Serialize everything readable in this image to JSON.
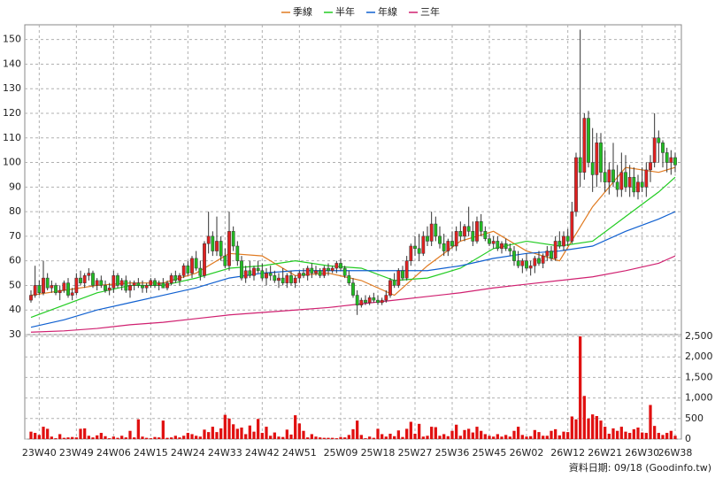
{
  "chart_data": {
    "type": "candlestick",
    "xlim": [
      -1.5,
      157.5
    ],
    "ylim": [
      30,
      156
    ],
    "y2lim": [
      0,
      2500
    ],
    "xticks": [
      {
        "value": 2,
        "label": "23W40"
      },
      {
        "value": 11,
        "label": "23W49"
      },
      {
        "value": 20,
        "label": "24W06"
      },
      {
        "value": 29,
        "label": "24W15"
      },
      {
        "value": 38,
        "label": "24W24"
      },
      {
        "value": 47,
        "label": "24W33"
      },
      {
        "value": 56,
        "label": "24W42"
      },
      {
        "value": 65,
        "label": "24W51"
      },
      {
        "value": 75,
        "label": "25W09"
      },
      {
        "value": 84,
        "label": "25W18"
      },
      {
        "value": 93,
        "label": "25W27"
      },
      {
        "value": 102,
        "label": "25W36"
      },
      {
        "value": 111,
        "label": "25W45"
      },
      {
        "value": 120,
        "label": "26W02"
      },
      {
        "value": 130,
        "label": "26W12"
      },
      {
        "value": 139,
        "label": "26W21"
      },
      {
        "value": 148,
        "label": "26W30"
      },
      {
        "value": 156,
        "label": "26W38"
      }
    ],
    "yticks": [
      30,
      40,
      50,
      60,
      70,
      80,
      90,
      100,
      110,
      120,
      130,
      140,
      150
    ],
    "y2ticks": [
      0,
      500,
      {
        "value": 1000,
        "label": "1,000"
      },
      {
        "value": 1500,
        "label": "1,500"
      },
      {
        "value": 2000,
        "label": "2,000"
      },
      {
        "value": 2500,
        "label": "2,500"
      }
    ],
    "grid": true,
    "up_color": "#e02020",
    "down_color": "#22bb22",
    "volume_color": "#e01010",
    "open": [
      44,
      46,
      50,
      47,
      53,
      49,
      50,
      47,
      48,
      51,
      46,
      47,
      53,
      51,
      54,
      55,
      50,
      52,
      50,
      48,
      49,
      54,
      50,
      52,
      48,
      50,
      51,
      50,
      49,
      50,
      52,
      50,
      51,
      49,
      51,
      54,
      52,
      54,
      58,
      55,
      61,
      57,
      54,
      67,
      70,
      64,
      68,
      62,
      58,
      72,
      66,
      60,
      53,
      56,
      54,
      57,
      56,
      53,
      55,
      54,
      52,
      53,
      51,
      54,
      51,
      53,
      55,
      54,
      57,
      55,
      56,
      54,
      57,
      56,
      57,
      59,
      57,
      54,
      51,
      46,
      42,
      44,
      43,
      45,
      44,
      43,
      44,
      46,
      52,
      50,
      56,
      53,
      60,
      66,
      65,
      63,
      70,
      68,
      75,
      70,
      67,
      64,
      68,
      66,
      72,
      70,
      74,
      72,
      68,
      76,
      72,
      69,
      67,
      68,
      65,
      67,
      65,
      64,
      60,
      58,
      60,
      57,
      58,
      61,
      59,
      62,
      64,
      61,
      68,
      66,
      70,
      68,
      80,
      102,
      96,
      118,
      100,
      95,
      108,
      96,
      92,
      97,
      92,
      89,
      96,
      90,
      94,
      88,
      92,
      90,
      97,
      100,
      110,
      108,
      104,
      100,
      102
    ],
    "high": [
      48,
      58,
      52,
      60,
      55,
      52,
      51,
      50,
      52,
      53,
      49,
      55,
      56,
      55,
      57,
      56,
      53,
      54,
      52,
      51,
      56,
      55,
      53,
      54,
      52,
      52,
      53,
      52,
      51,
      53,
      53,
      52,
      53,
      52,
      55,
      56,
      55,
      59,
      60,
      62,
      64,
      60,
      68,
      80,
      72,
      78,
      70,
      65,
      80,
      74,
      68,
      62,
      58,
      60,
      58,
      60,
      59,
      57,
      58,
      56,
      55,
      57,
      55,
      56,
      54,
      56,
      57,
      58,
      59,
      58,
      57,
      58,
      59,
      58,
      60,
      61,
      58,
      56,
      53,
      48,
      45,
      46,
      46,
      47,
      46,
      45,
      48,
      53,
      55,
      57,
      58,
      62,
      67,
      70,
      71,
      72,
      74,
      80,
      78,
      74,
      71,
      69,
      72,
      74,
      76,
      75,
      82,
      76,
      78,
      79,
      74,
      71,
      70,
      70,
      68,
      69,
      67,
      66,
      64,
      61,
      63,
      60,
      62,
      64,
      63,
      66,
      66,
      70,
      72,
      72,
      73,
      84,
      104,
      154,
      120,
      121,
      114,
      112,
      112,
      105,
      100,
      108,
      99,
      104,
      103,
      99,
      98,
      95,
      98,
      100,
      103,
      120,
      113,
      109,
      106,
      105,
      104
    ],
    "low": [
      43,
      45,
      46,
      46,
      48,
      47,
      46,
      44,
      47,
      45,
      44,
      46,
      50,
      49,
      52,
      49,
      48,
      49,
      47,
      46,
      47,
      49,
      48,
      47,
      45,
      48,
      49,
      47,
      47,
      49,
      49,
      48,
      49,
      48,
      50,
      51,
      50,
      53,
      54,
      53,
      56,
      52,
      53,
      63,
      62,
      62,
      60,
      57,
      56,
      64,
      58,
      52,
      51,
      53,
      52,
      55,
      52,
      50,
      52,
      51,
      49,
      50,
      49,
      50,
      49,
      51,
      53,
      52,
      53,
      54,
      53,
      53,
      54,
      55,
      55,
      56,
      53,
      50,
      45,
      38,
      41,
      42,
      42,
      43,
      42,
      42,
      43,
      45,
      49,
      49,
      52,
      52,
      58,
      62,
      60,
      62,
      66,
      66,
      68,
      65,
      62,
      62,
      65,
      64,
      68,
      68,
      70,
      66,
      67,
      70,
      68,
      66,
      65,
      64,
      63,
      64,
      62,
      58,
      57,
      55,
      56,
      54,
      55,
      58,
      57,
      60,
      60,
      60,
      65,
      64,
      66,
      67,
      78,
      90,
      93,
      98,
      88,
      90,
      92,
      88,
      87,
      90,
      86,
      86,
      88,
      86,
      86,
      85,
      88,
      86,
      92,
      98,
      100,
      98,
      96,
      95,
      96
    ],
    "close": [
      46,
      50,
      47,
      53,
      49,
      50,
      47,
      48,
      51,
      46,
      47,
      53,
      51,
      54,
      55,
      50,
      52,
      50,
      48,
      49,
      54,
      50,
      52,
      48,
      50,
      51,
      50,
      49,
      50,
      52,
      50,
      51,
      49,
      51,
      54,
      52,
      54,
      58,
      55,
      61,
      57,
      54,
      67,
      70,
      64,
      68,
      62,
      58,
      72,
      66,
      60,
      53,
      56,
      54,
      57,
      56,
      53,
      55,
      54,
      52,
      53,
      51,
      54,
      51,
      53,
      55,
      54,
      57,
      55,
      56,
      54,
      57,
      56,
      57,
      59,
      57,
      54,
      51,
      46,
      42,
      44,
      43,
      45,
      44,
      43,
      44,
      46,
      52,
      50,
      56,
      53,
      60,
      66,
      65,
      63,
      70,
      68,
      75,
      70,
      67,
      64,
      68,
      66,
      72,
      70,
      74,
      72,
      68,
      76,
      72,
      69,
      67,
      68,
      65,
      67,
      65,
      64,
      60,
      58,
      60,
      57,
      58,
      61,
      59,
      62,
      64,
      61,
      68,
      66,
      70,
      68,
      80,
      102,
      96,
      118,
      100,
      95,
      108,
      96,
      92,
      97,
      92,
      89,
      96,
      90,
      94,
      88,
      92,
      90,
      97,
      100,
      110,
      108,
      104,
      100,
      102,
      99
    ],
    "volume": [
      180,
      150,
      100,
      300,
      250,
      60,
      20,
      120,
      30,
      40,
      50,
      40,
      250,
      260,
      80,
      40,
      90,
      150,
      70,
      20,
      60,
      30,
      80,
      40,
      200,
      40,
      480,
      60,
      30,
      20,
      50,
      40,
      450,
      30,
      40,
      80,
      40,
      80,
      150,
      120,
      80,
      60,
      230,
      170,
      300,
      170,
      260,
      590,
      500,
      360,
      250,
      280,
      120,
      330,
      180,
      490,
      150,
      300,
      80,
      160,
      60,
      50,
      230,
      110,
      580,
      380,
      200,
      40,
      120,
      60,
      40,
      30,
      30,
      30,
      20,
      50,
      40,
      100,
      240,
      450,
      100,
      20,
      60,
      30,
      250,
      120,
      60,
      130,
      70,
      210,
      50,
      250,
      420,
      130,
      370,
      60,
      80,
      300,
      290,
      80,
      120,
      70,
      200,
      350,
      80,
      220,
      250,
      160,
      300,
      200,
      120,
      80,
      60,
      120,
      60,
      100,
      60,
      200,
      300,
      100,
      60,
      70,
      220,
      170,
      80,
      80,
      200,
      240,
      90,
      180,
      170,
      550,
      480,
      2500,
      1050,
      500,
      600,
      560,
      450,
      300,
      130,
      260,
      200,
      300,
      180,
      150,
      240,
      280,
      160,
      150,
      830,
      320,
      150,
      100,
      150,
      200,
      80
    ],
    "series": [
      {
        "name": "季線",
        "color": "#e07a20",
        "x": [
          0,
          8,
          16,
          24,
          32,
          40,
          48,
          56,
          64,
          72,
          80,
          88,
          96,
          104,
          112,
          120,
          128,
          136,
          144,
          152,
          156
        ],
        "values": [
          46,
          48,
          50,
          51,
          51,
          55,
          63,
          62,
          54,
          55,
          52,
          46,
          58,
          68,
          72,
          64,
          60,
          82,
          98,
          96,
          98
        ]
      },
      {
        "name": "半年",
        "color": "#22cc22",
        "x": [
          0,
          8,
          16,
          24,
          32,
          40,
          48,
          56,
          64,
          72,
          80,
          88,
          96,
          104,
          112,
          120,
          128,
          136,
          144,
          152,
          156
        ],
        "values": [
          37,
          42,
          47,
          50,
          50,
          53,
          57,
          58,
          60,
          58,
          57,
          52,
          53,
          57,
          65,
          68,
          66,
          68,
          78,
          88,
          94
        ]
      },
      {
        "name": "年線",
        "color": "#1060d0",
        "x": [
          0,
          8,
          16,
          24,
          32,
          40,
          48,
          56,
          64,
          72,
          80,
          88,
          96,
          104,
          112,
          120,
          128,
          136,
          144,
          152,
          156
        ],
        "values": [
          33,
          36,
          40,
          43,
          46,
          49,
          53,
          55,
          56,
          56,
          56,
          56,
          56,
          58,
          61,
          63,
          64,
          66,
          72,
          77,
          80
        ]
      },
      {
        "name": "三年",
        "color": "#d02070",
        "x": [
          0,
          8,
          16,
          24,
          32,
          40,
          48,
          56,
          64,
          72,
          80,
          88,
          96,
          104,
          112,
          120,
          128,
          136,
          144,
          152,
          156
        ],
        "values": [
          31,
          31.5,
          32.5,
          34,
          35,
          36.5,
          38,
          39,
          40,
          41,
          42.5,
          44,
          45.5,
          47,
          49,
          50.5,
          52,
          53.5,
          56,
          59,
          62
        ]
      }
    ],
    "footer": "資料日期: 09/18  (Goodinfo.tw)"
  }
}
